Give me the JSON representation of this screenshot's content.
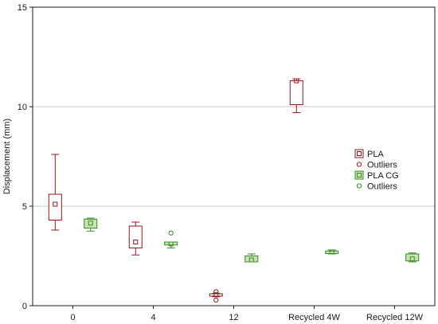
{
  "chart_data": {
    "type": "box",
    "title": "",
    "xlabel": "",
    "ylabel": "Displacement (mm)",
    "ylim": [
      0,
      15
    ],
    "yticks": [
      0,
      5,
      10,
      15
    ],
    "grid": "horizontal",
    "legend_position": "right",
    "categories": [
      "0",
      "4",
      "12",
      "Recycled 4W",
      "Recycled 12W"
    ],
    "series": [
      {
        "name": "PLA",
        "outliers_label": "Outliers",
        "color": "#8b1a1a",
        "fill": "#ffffff",
        "boxes": [
          {
            "category": "0",
            "whisker_low": 3.8,
            "q1": 4.3,
            "median": 5.1,
            "q3": 5.6,
            "whisker_high": 7.6,
            "outliers": []
          },
          {
            "category": "4",
            "whisker_low": 2.55,
            "q1": 2.9,
            "median": 3.2,
            "q3": 4.0,
            "whisker_high": 4.2,
            "outliers": []
          },
          {
            "category": "12",
            "whisker_low": 0.45,
            "q1": 0.48,
            "median": 0.55,
            "q3": 0.6,
            "whisker_high": 0.62,
            "outliers": [
              0.28,
              0.7
            ]
          },
          {
            "category": "Recycled 4W",
            "whisker_low": 9.7,
            "q1": 10.1,
            "median": 11.3,
            "q3": 11.3,
            "whisker_high": 11.4,
            "outliers": []
          },
          null
        ]
      },
      {
        "name": "PLA CG",
        "outliers_label": "Outliers",
        "color": "#3a8a2a",
        "fill": "#c9e3b4",
        "boxes": [
          {
            "category": "0",
            "whisker_low": 3.75,
            "q1": 3.9,
            "median": 4.15,
            "q3": 4.35,
            "whisker_high": 4.4,
            "outliers": []
          },
          {
            "category": "4",
            "whisker_low": 2.9,
            "q1": 3.05,
            "median": 3.1,
            "q3": 3.2,
            "whisker_high": 3.2,
            "outliers": [
              3.65
            ]
          },
          {
            "category": "12",
            "whisker_low": 2.2,
            "q1": 2.2,
            "median": 2.3,
            "q3": 2.5,
            "whisker_high": 2.6,
            "outliers": []
          },
          {
            "category": "Recycled 4W",
            "whisker_low": 2.6,
            "q1": 2.62,
            "median": 2.7,
            "q3": 2.75,
            "whisker_high": 2.8,
            "outliers": []
          },
          {
            "category": "Recycled 12W",
            "whisker_low": 2.2,
            "q1": 2.25,
            "median": 2.35,
            "q3": 2.6,
            "whisker_high": 2.65,
            "outliers": []
          }
        ]
      }
    ]
  }
}
